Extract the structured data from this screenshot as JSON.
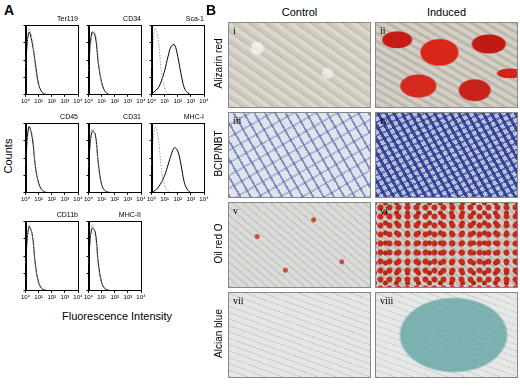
{
  "panel_a": {
    "label": "A",
    "y_label": "Counts",
    "x_label": "Fluorescence Intensity"
  },
  "chart_data": [
    {
      "type": "line",
      "title": "Ter119",
      "x": [
        1,
        1.8,
        3.2,
        5.6,
        10,
        18,
        32,
        56,
        100,
        178,
        316,
        562,
        1000
      ],
      "series": [
        {
          "color": "#999999",
          "line_style": "dotted",
          "values": [
            40,
            95,
            80,
            40,
            12,
            3,
            1,
            0,
            0,
            0,
            0,
            0,
            0
          ]
        },
        {
          "color": "#000000",
          "line_style": "solid",
          "values": [
            45,
            90,
            75,
            45,
            15,
            4,
            1,
            0,
            0,
            0,
            0,
            0,
            0
          ]
        }
      ],
      "log": "x",
      "xlim": [
        1,
        10000
      ],
      "xticks": [
        {
          "value": 1,
          "label": "10⁰"
        },
        {
          "value": 10,
          "label": "10¹"
        },
        {
          "value": 100,
          "label": "10²"
        },
        {
          "value": 1000,
          "label": "10³"
        },
        {
          "value": 10000,
          "label": "10⁴"
        }
      ],
      "ylim": [
        0,
        100
      ],
      "yticks": [
        0,
        25,
        50,
        75,
        100
      ],
      "grid": false,
      "tick_labels": "x"
    },
    {
      "type": "line",
      "title": "CD34",
      "x": [
        1,
        1.8,
        3.2,
        5.6,
        10,
        18,
        32,
        56,
        100,
        178,
        316,
        562,
        1000
      ],
      "series": [
        {
          "color": "#999999",
          "line_style": "dotted",
          "values": [
            35,
            85,
            90,
            50,
            15,
            4,
            1,
            0,
            0,
            0,
            0,
            0,
            0
          ]
        },
        {
          "color": "#000000",
          "line_style": "solid",
          "values": [
            40,
            90,
            85,
            45,
            18,
            5,
            1,
            0,
            0,
            0,
            0,
            0,
            0
          ]
        }
      ],
      "log": "x",
      "xlim": [
        1,
        10000
      ],
      "xticks": [
        {
          "value": 1,
          "label": "10⁰"
        },
        {
          "value": 10,
          "label": "10¹"
        },
        {
          "value": 100,
          "label": "10²"
        },
        {
          "value": 1000,
          "label": "10³"
        },
        {
          "value": 10000,
          "label": "10⁴"
        }
      ],
      "ylim": [
        0,
        100
      ],
      "yticks": [
        0,
        25,
        50,
        75,
        100
      ],
      "grid": false,
      "tick_labels": "x"
    },
    {
      "type": "line",
      "title": "Sca-1",
      "x": [
        1,
        1.8,
        3.2,
        5.6,
        10,
        18,
        32,
        56,
        100,
        178,
        316,
        562,
        1000
      ],
      "series": [
        {
          "color": "#999999",
          "line_style": "dotted",
          "values": [
            40,
            95,
            80,
            35,
            10,
            2,
            0,
            0,
            0,
            0,
            0,
            0,
            0
          ]
        },
        {
          "color": "#000000",
          "line_style": "solid",
          "values": [
            2,
            5,
            10,
            20,
            35,
            55,
            70,
            72,
            55,
            30,
            10,
            3,
            0
          ]
        }
      ],
      "log": "x",
      "xlim": [
        1,
        10000
      ],
      "xticks": [
        {
          "value": 1,
          "label": "10⁰"
        },
        {
          "value": 10,
          "label": "10¹"
        },
        {
          "value": 100,
          "label": "10²"
        },
        {
          "value": 1000,
          "label": "10³"
        },
        {
          "value": 10000,
          "label": "10⁴"
        }
      ],
      "ylim": [
        0,
        100
      ],
      "yticks": [
        0,
        25,
        50,
        75,
        100
      ],
      "grid": false,
      "tick_labels": "x"
    },
    {
      "type": "line",
      "title": "CD45",
      "x": [
        1,
        1.8,
        3.2,
        5.6,
        10,
        18,
        32,
        56,
        100,
        178,
        316,
        562,
        1000
      ],
      "series": [
        {
          "color": "#999999",
          "line_style": "dotted",
          "values": [
            40,
            90,
            85,
            40,
            12,
            3,
            1,
            0,
            0,
            0,
            0,
            0,
            0
          ]
        },
        {
          "color": "#000000",
          "line_style": "solid",
          "values": [
            45,
            95,
            80,
            38,
            14,
            4,
            1,
            0,
            0,
            0,
            0,
            0,
            0
          ]
        }
      ],
      "log": "x",
      "xlim": [
        1,
        10000
      ],
      "xticks": [
        {
          "value": 1,
          "label": "10⁰"
        },
        {
          "value": 10,
          "label": "10¹"
        },
        {
          "value": 100,
          "label": "10²"
        },
        {
          "value": 1000,
          "label": "10³"
        },
        {
          "value": 10000,
          "label": "10⁴"
        }
      ],
      "ylim": [
        0,
        100
      ],
      "yticks": [
        0,
        25,
        50,
        75,
        100
      ],
      "grid": false,
      "tick_labels": "x"
    },
    {
      "type": "line",
      "title": "CD31",
      "x": [
        1,
        1.8,
        3.2,
        5.6,
        10,
        18,
        32,
        56,
        100,
        178,
        316,
        562,
        1000
      ],
      "series": [
        {
          "color": "#999999",
          "line_style": "dotted",
          "values": [
            38,
            92,
            82,
            38,
            10,
            3,
            1,
            0,
            0,
            0,
            0,
            0,
            0
          ]
        },
        {
          "color": "#000000",
          "line_style": "solid",
          "values": [
            40,
            88,
            85,
            42,
            12,
            3,
            1,
            0,
            0,
            0,
            0,
            0,
            0
          ]
        }
      ],
      "log": "x",
      "xlim": [
        1,
        10000
      ],
      "xticks": [
        {
          "value": 1,
          "label": "10⁰"
        },
        {
          "value": 10,
          "label": "10¹"
        },
        {
          "value": 100,
          "label": "10²"
        },
        {
          "value": 1000,
          "label": "10³"
        },
        {
          "value": 10000,
          "label": "10⁴"
        }
      ],
      "ylim": [
        0,
        100
      ],
      "yticks": [
        0,
        25,
        50,
        75,
        100
      ],
      "grid": false,
      "tick_labels": "x"
    },
    {
      "type": "line",
      "title": "MHC-I",
      "x": [
        1,
        1.8,
        3.2,
        5.6,
        10,
        18,
        32,
        56,
        100,
        178,
        316,
        562,
        1000
      ],
      "series": [
        {
          "color": "#999999",
          "line_style": "dotted",
          "values": [
            40,
            95,
            80,
            35,
            10,
            2,
            0,
            0,
            0,
            0,
            0,
            0,
            0
          ]
        },
        {
          "color": "#000000",
          "line_style": "solid",
          "values": [
            1,
            3,
            8,
            15,
            25,
            40,
            55,
            65,
            60,
            40,
            15,
            4,
            0
          ]
        }
      ],
      "log": "x",
      "xlim": [
        1,
        10000
      ],
      "xticks": [
        {
          "value": 1,
          "label": "10⁰"
        },
        {
          "value": 10,
          "label": "10¹"
        },
        {
          "value": 100,
          "label": "10²"
        },
        {
          "value": 1000,
          "label": "10³"
        },
        {
          "value": 10000,
          "label": "10⁴"
        }
      ],
      "ylim": [
        0,
        100
      ],
      "yticks": [
        0,
        25,
        50,
        75,
        100
      ],
      "grid": false,
      "tick_labels": "x"
    },
    {
      "type": "line",
      "title": "CD11b",
      "x": [
        1,
        1.8,
        3.2,
        5.6,
        10,
        18,
        32,
        56,
        100,
        178,
        316,
        562,
        1000
      ],
      "series": [
        {
          "color": "#999999",
          "line_style": "dotted",
          "values": [
            40,
            95,
            80,
            35,
            10,
            2,
            0,
            0,
            0,
            0,
            0,
            0,
            0
          ]
        },
        {
          "color": "#000000",
          "line_style": "solid",
          "values": [
            42,
            92,
            82,
            38,
            12,
            3,
            1,
            0,
            0,
            0,
            0,
            0,
            0
          ]
        }
      ],
      "log": "x",
      "xlim": [
        1,
        10000
      ],
      "xticks": [
        {
          "value": 1,
          "label": "10⁰"
        },
        {
          "value": 10,
          "label": "10¹"
        },
        {
          "value": 100,
          "label": "10²"
        },
        {
          "value": 1000,
          "label": "10³"
        },
        {
          "value": 10000,
          "label": "10⁴"
        }
      ],
      "ylim": [
        0,
        100
      ],
      "yticks": [
        0,
        25,
        50,
        75,
        100
      ],
      "grid": false,
      "tick_labels": "x"
    },
    {
      "type": "line",
      "title": "MHC-II",
      "x": [
        1,
        1.8,
        3.2,
        5.6,
        10,
        18,
        32,
        56,
        100,
        178,
        316,
        562,
        1000
      ],
      "series": [
        {
          "color": "#999999",
          "line_style": "dotted",
          "values": [
            40,
            95,
            80,
            35,
            10,
            2,
            0,
            0,
            0,
            0,
            0,
            0,
            0
          ]
        },
        {
          "color": "#000000",
          "line_style": "solid",
          "values": [
            45,
            90,
            85,
            40,
            12,
            3,
            1,
            0,
            0,
            0,
            0,
            0,
            0
          ]
        }
      ],
      "log": "x",
      "xlim": [
        1,
        10000
      ],
      "xticks": [
        {
          "value": 1,
          "label": "10⁰"
        },
        {
          "value": 10,
          "label": "10¹"
        },
        {
          "value": 100,
          "label": "10²"
        },
        {
          "value": 1000,
          "label": "10³"
        },
        {
          "value": 10000,
          "label": "10⁴"
        }
      ],
      "ylim": [
        0,
        100
      ],
      "yticks": [
        0,
        25,
        50,
        75,
        100
      ],
      "grid": false,
      "tick_labels": "x"
    }
  ],
  "panel_b": {
    "label": "B",
    "columns": [
      "Control",
      "Induced"
    ],
    "rows": [
      {
        "stain": "Alizarin red",
        "images": [
          "i",
          "ii"
        ]
      },
      {
        "stain": "BCIP/NBT",
        "images": [
          "iii",
          "iv"
        ]
      },
      {
        "stain": "Oil red O",
        "images": [
          "v",
          "vi"
        ]
      },
      {
        "stain": "Alcian blue",
        "images": [
          "vii",
          "viii"
        ]
      }
    ]
  }
}
